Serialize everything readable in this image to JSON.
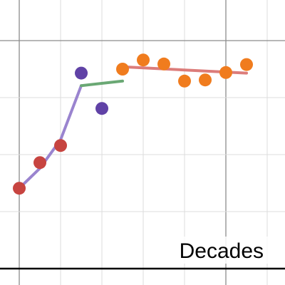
{
  "chart_data": {
    "type": "scatter",
    "x_label": "Decades",
    "xlim": [
      -0.466,
      6.431
    ],
    "ylim": [
      -0.2875,
      4.7125
    ],
    "xticks": [
      0,
      1,
      2,
      3,
      4,
      5,
      6
    ],
    "yticks": [
      0,
      1,
      2,
      3,
      4
    ],
    "major_xticks": [
      0,
      5
    ],
    "major_yticks": [
      4
    ],
    "grid": true,
    "series": [
      {
        "kind": "line",
        "color": "#9a84cf",
        "x": [
          0,
          0.5,
          1,
          1.5
        ],
        "values": [
          1.41,
          1.76,
          2.26,
          3.21
        ]
      },
      {
        "kind": "line",
        "color": "#6aa874",
        "x": [
          1.5,
          2.5
        ],
        "values": [
          3.21,
          3.29
        ]
      },
      {
        "kind": "line",
        "color": "#dc7c7a",
        "x": [
          2.5,
          5.5
        ],
        "values": [
          3.54,
          3.43
        ]
      },
      {
        "kind": "scatter",
        "color": "#c74440",
        "x": [
          0,
          0.5,
          1
        ],
        "values": [
          1.41,
          1.86,
          2.16
        ]
      },
      {
        "kind": "scatter",
        "color": "#6042a6",
        "x": [
          1.5,
          2
        ],
        "values": [
          3.43,
          2.81
        ]
      },
      {
        "kind": "scatter",
        "color": "#f07c1e",
        "x": [
          2.5,
          3,
          3.5,
          4,
          4.5,
          5,
          5.5
        ],
        "values": [
          3.5,
          3.66,
          3.59,
          3.29,
          3.31,
          3.44,
          3.58
        ]
      }
    ]
  }
}
